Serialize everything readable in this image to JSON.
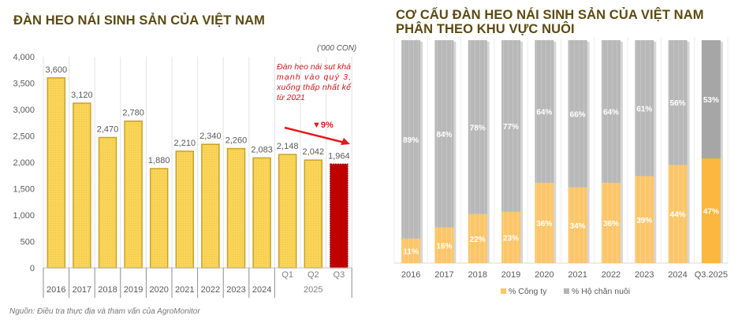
{
  "left_chart": {
    "title": "ĐÀN HEO NÁI SINH SẢN CỦA VIỆT NAM",
    "unit": "('000 CON)",
    "annotation_lines": [
      "Đàn heo nái sụt khá",
      "mạnh vào quý 3,",
      "xuống thấp nhất kể",
      "từ 2021"
    ],
    "change_label": "▼9%",
    "source": "Nguồn: Điều tra thực địa và tham vấn của AgroMonitor",
    "colors": {
      "bar": "#f9d55a",
      "bar_border": "#c9a227",
      "highlight": "#c00000",
      "arrow": "#e0191e",
      "annotation": "#d0161b"
    }
  },
  "right_chart": {
    "title_line1": "CƠ CẤU ĐÀN HEO NÁI SINH SẢN CỦA VIỆT NAM",
    "title_line2": "PHÂN THEO KHU VỰC NUÔI",
    "legend": [
      {
        "label": "% Công ty",
        "color": "#fbc869"
      },
      {
        "label": "% Hộ chăn nuôi",
        "color": "#b5b5b5"
      }
    ]
  },
  "chart_data": [
    {
      "type": "bar",
      "title": "ĐÀN HEO NÁI SINH SẢN CỦA VIỆT NAM",
      "ylabel": "('000 CON)",
      "xlabel": "",
      "categories": [
        "2016",
        "2017",
        "2018",
        "2019",
        "2020",
        "2021",
        "2022",
        "2023",
        "2024",
        "Q1 2025",
        "Q2 2025",
        "Q3 2025"
      ],
      "x_tick_labels": [
        "2016",
        "2017",
        "2018",
        "2019",
        "2020",
        "2021",
        "2022",
        "2023",
        "2024",
        "Q1",
        "Q2",
        "Q3"
      ],
      "x_group_label": "2025",
      "values": [
        3600,
        3120,
        2470,
        2780,
        1880,
        2210,
        2340,
        2260,
        2083,
        2148,
        2042,
        1964
      ],
      "value_labels": [
        "3,600",
        "3,120",
        "2,470",
        "2,780",
        "1,880",
        "2,210",
        "2,340",
        "2,260",
        "2,083",
        "2,148",
        "2,042",
        "1,964"
      ],
      "highlight_index": 11,
      "ylim": [
        0,
        4000
      ],
      "yticks": [
        0,
        500,
        1000,
        1500,
        2000,
        2500,
        3000,
        3500,
        4000
      ],
      "ytick_labels": [
        "0",
        "500",
        "1,000",
        "1,500",
        "2,000",
        "2,500",
        "3,000",
        "3,500",
        "4,000"
      ],
      "grid": "vertical",
      "annotations": [
        "Đàn heo nái sụt khá mạnh vào quý 3, xuống thấp nhất kể từ 2021",
        "▼9%"
      ]
    },
    {
      "type": "bar",
      "stacked": true,
      "percent": true,
      "title": "CƠ CẤU ĐÀN HEO NÁI SINH SẢN CỦA VIỆT NAM PHÂN THEO KHU VỰC NUÔI",
      "categories": [
        "2016",
        "2017",
        "2018",
        "2019",
        "2020",
        "2021",
        "2022",
        "2023",
        "2024",
        "Q3.2025"
      ],
      "series": [
        {
          "name": "% Công ty",
          "values": [
            11,
            16,
            22,
            23,
            36,
            34,
            36,
            39,
            44,
            47
          ]
        },
        {
          "name": "% Hộ chăn nuôi",
          "values": [
            89,
            84,
            78,
            77,
            64,
            66,
            64,
            61,
            56,
            53
          ]
        }
      ],
      "ylim": [
        0,
        100
      ],
      "legend_position": "bottom"
    }
  ]
}
